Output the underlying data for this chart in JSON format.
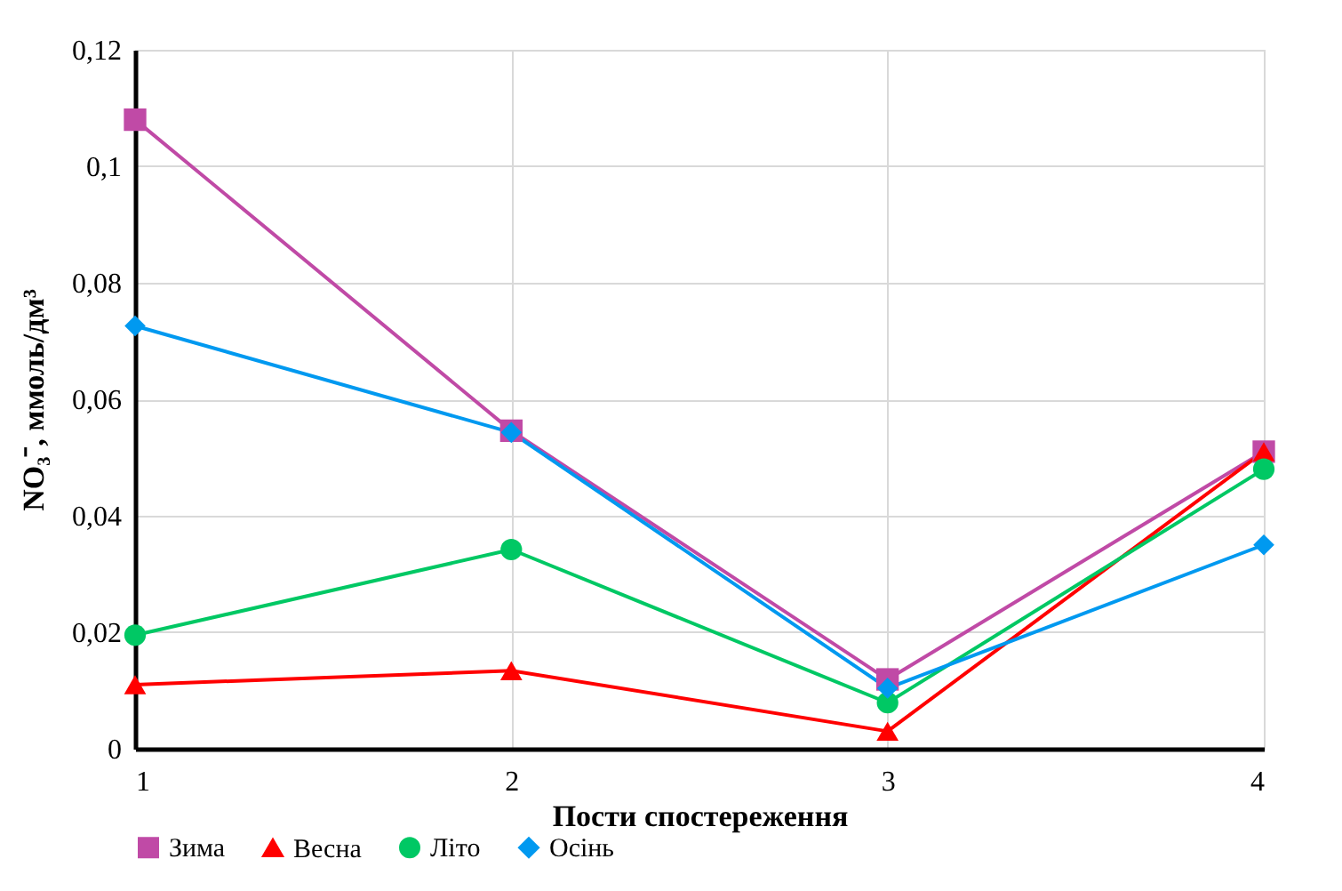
{
  "chart_data": {
    "type": "line",
    "xlabel": "Пости  спостереження",
    "ylabel": "NO₃⁻, ммоль/дм³",
    "x": [
      1,
      2,
      3,
      4
    ],
    "xlim": [
      1,
      4
    ],
    "xticks": [
      1,
      2,
      3,
      4
    ],
    "ylim": [
      0,
      0.12
    ],
    "yticks": [
      0,
      {
        "value": 0.02,
        "label": "0,02"
      },
      {
        "value": 0.04,
        "label": "0,04"
      },
      {
        "value": 0.06,
        "label": "0,06"
      },
      {
        "value": 0.08,
        "label": "0,08"
      },
      {
        "value": 0.1,
        "label": "0,1"
      },
      {
        "value": 0.12,
        "label": "0,12"
      }
    ],
    "grid": true,
    "legend": "bottom",
    "series": [
      {
        "name": "Зима",
        "color": "#c04aa6",
        "marker": "square",
        "values": [
          0.108,
          0.0546,
          0.0119,
          0.051
        ]
      },
      {
        "name": "Весна",
        "color": "#ff0000",
        "marker": "triangle",
        "values": [
          0.011,
          0.0134,
          0.003,
          0.051
        ]
      },
      {
        "name": "Літо",
        "color": "#00c864",
        "marker": "circle",
        "values": [
          0.0195,
          0.0342,
          0.0079,
          0.048
        ]
      },
      {
        "name": "Осінь",
        "color": "#0099f0",
        "marker": "diamond",
        "values": [
          0.0726,
          0.0543,
          0.0104,
          0.035
        ]
      }
    ]
  }
}
